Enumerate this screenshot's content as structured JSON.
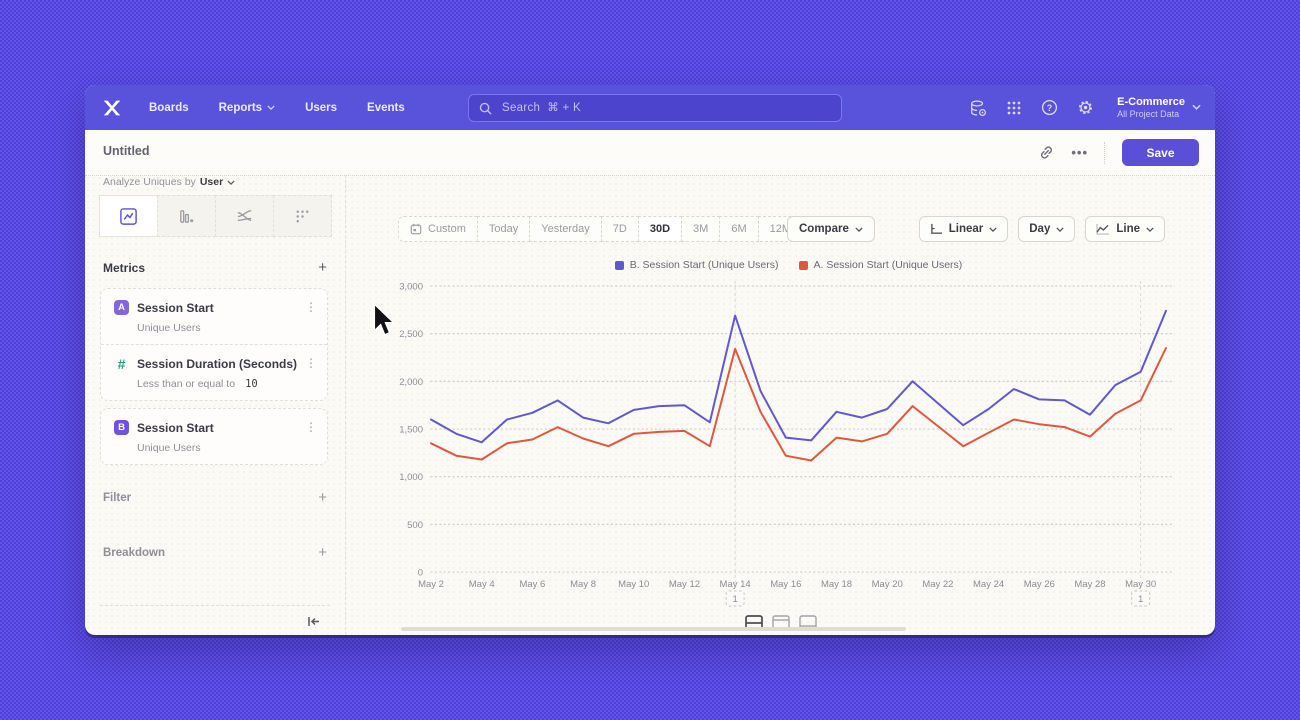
{
  "nav": {
    "items": [
      {
        "label": "Boards"
      },
      {
        "label": "Reports"
      },
      {
        "label": "Users"
      },
      {
        "label": "Events"
      }
    ],
    "search_placeholder": "Search  ⌘ + K",
    "project_name": "E-Commerce",
    "project_subtitle": "All Project Data"
  },
  "header": {
    "title": "Untitled",
    "more_label": "•••",
    "save_label": "Save"
  },
  "sidebar": {
    "analyze_prefix": "Analyze Uniques by",
    "analyze_value": "User",
    "metrics_title": "Metrics",
    "add_label": "+",
    "cards": [
      {
        "badge": "A",
        "title": "Session Start",
        "subtitle": "Unique Users"
      },
      {
        "badge": "#",
        "title": "Session Duration (Seconds)",
        "condition": "Less than or equal to",
        "condition_value": "10"
      },
      {
        "badge": "B",
        "title": "Session Start",
        "subtitle": "Unique Users"
      }
    ],
    "filter_title": "Filter",
    "breakdown_title": "Breakdown"
  },
  "toolbar": {
    "ranges": [
      "Custom",
      "Today",
      "Yesterday",
      "7D",
      "30D",
      "3M",
      "6M",
      "12M"
    ],
    "selected_range": "30D",
    "compare_label": "Compare",
    "scale_label": "Linear",
    "interval_label": "Day",
    "chart_type_label": "Line"
  },
  "chart_data": {
    "type": "line",
    "title": "",
    "xlabel": "",
    "ylabel": "",
    "ylim": [
      0,
      3000
    ],
    "yticks": [
      0,
      500,
      1000,
      1500,
      2000,
      2500,
      3000
    ],
    "grid": "horizontal-dotted",
    "legend_position": "top-center",
    "x": [
      "May 2",
      "May 3",
      "May 4",
      "May 5",
      "May 6",
      "May 7",
      "May 8",
      "May 9",
      "May 10",
      "May 11",
      "May 12",
      "May 13",
      "May 14",
      "May 15",
      "May 16",
      "May 17",
      "May 18",
      "May 19",
      "May 20",
      "May 21",
      "May 22",
      "May 23",
      "May 24",
      "May 25",
      "May 26",
      "May 27",
      "May 28",
      "May 29",
      "May 30",
      "May 31"
    ],
    "xtick_labels": [
      "May 2",
      "May 4",
      "May 6",
      "May 8",
      "May 10",
      "May 12",
      "May 14",
      "May 16",
      "May 18",
      "May 20",
      "May 22",
      "May 24",
      "May 26",
      "May 28",
      "May 30"
    ],
    "series": [
      {
        "name": "B. Session Start (Unique Users)",
        "color": "#6157d2",
        "values": [
          1600,
          1450,
          1360,
          1600,
          1670,
          1800,
          1620,
          1560,
          1700,
          1740,
          1750,
          1570,
          2690,
          1900,
          1410,
          1380,
          1680,
          1620,
          1710,
          2000,
          1770,
          1540,
          1710,
          1920,
          1810,
          1800,
          1650,
          1960,
          2100,
          2740
        ]
      },
      {
        "name": "A. Session Start (Unique Users)",
        "color": "#e0573f",
        "values": [
          1350,
          1220,
          1180,
          1350,
          1390,
          1520,
          1400,
          1320,
          1450,
          1470,
          1480,
          1320,
          2340,
          1680,
          1220,
          1170,
          1410,
          1370,
          1450,
          1740,
          1530,
          1320,
          1460,
          1600,
          1550,
          1520,
          1420,
          1660,
          1800,
          2350
        ]
      }
    ],
    "annotations": [
      {
        "x": "May 14",
        "label": "1"
      },
      {
        "x": "May 30",
        "label": "1"
      }
    ]
  }
}
